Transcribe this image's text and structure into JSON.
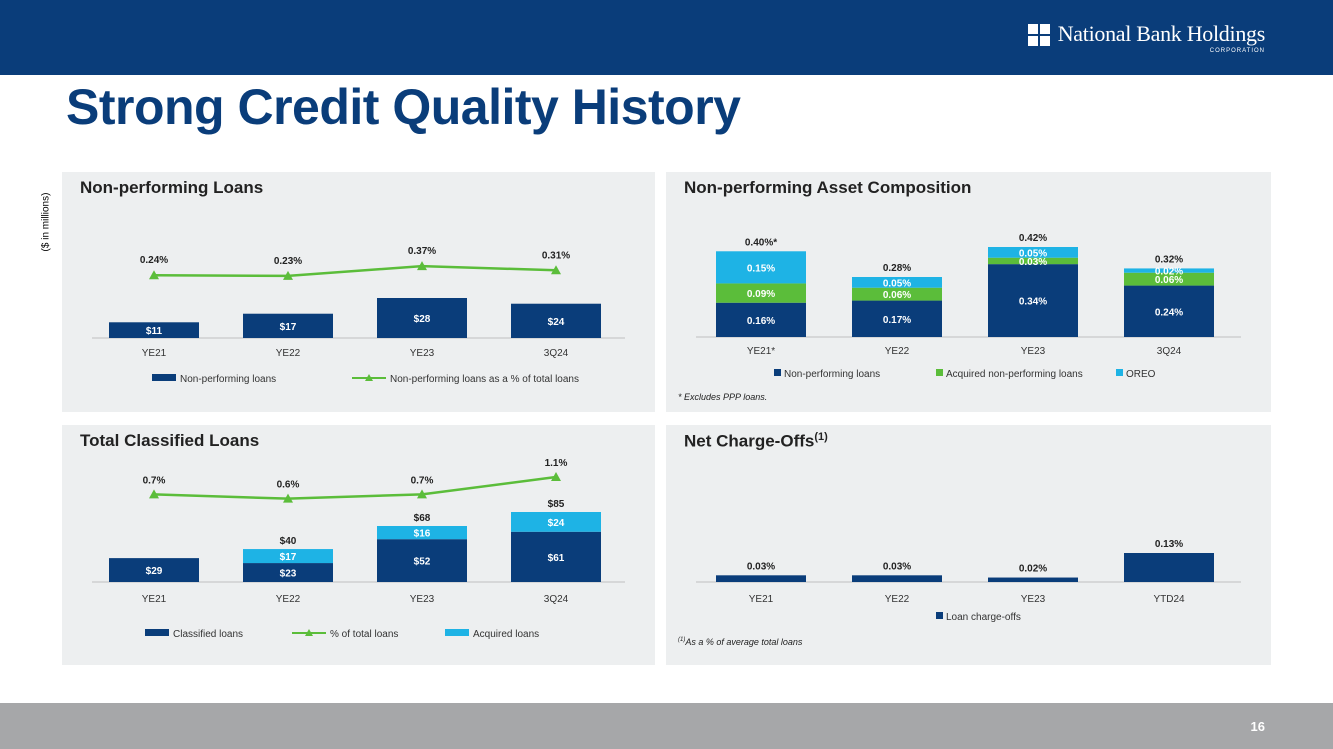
{
  "header": {
    "brand": "National Bank Holdings",
    "brand_sub": "CORPORATION"
  },
  "title": "Strong Credit Quality History",
  "units_label": "($ in millions)",
  "page_number": "16",
  "colors": {
    "navy": "#0a3d7a",
    "green": "#5bbd3a",
    "cyan": "#1eb3e5"
  },
  "panels": {
    "npl": {
      "title": "Non-performing Loans"
    },
    "npa": {
      "title": "Non-performing Asset Composition",
      "footnote": "* Excludes PPP loans."
    },
    "tcl": {
      "title": "Total Classified Loans"
    },
    "nco": {
      "title": "Net Charge-Offs",
      "title_sup": "(1)",
      "footnote_sup": "(1)",
      "footnote": "As a % of average total loans"
    }
  },
  "chart_data": [
    {
      "id": "npl",
      "type": "bar",
      "title": "Non-performing Loans",
      "categories": [
        "YE21",
        "YE22",
        "YE23",
        "3Q24"
      ],
      "series": [
        {
          "name": "Non-performing loans",
          "kind": "bar",
          "color": "#0a3d7a",
          "values": [
            11,
            17,
            28,
            24
          ],
          "labels": [
            "$11",
            "$17",
            "$28",
            "$24"
          ]
        },
        {
          "name": "Non-performing loans as a % of total loans",
          "kind": "line",
          "color": "#5bbd3a",
          "values": [
            0.24,
            0.23,
            0.37,
            0.31
          ],
          "labels": [
            "0.24%",
            "0.23%",
            "0.37%",
            "0.31%"
          ]
        }
      ],
      "legend": "bottom"
    },
    {
      "id": "npa",
      "type": "bar",
      "stacked": true,
      "title": "Non-performing Asset Composition",
      "categories": [
        "YE21*",
        "YE22",
        "YE23",
        "3Q24"
      ],
      "totals": [
        "0.40%*",
        "0.28%",
        "0.42%",
        "0.32%"
      ],
      "series": [
        {
          "name": "Non-performing loans",
          "color": "#0a3d7a",
          "values": [
            0.16,
            0.17,
            0.34,
            0.24
          ],
          "labels": [
            "0.16%",
            "0.17%",
            "0.34%",
            "0.24%"
          ]
        },
        {
          "name": "Acquired non-performing loans",
          "color": "#5bbd3a",
          "values": [
            0.09,
            0.06,
            0.03,
            0.06
          ],
          "labels": [
            "0.09%",
            "0.06%",
            "0.03%",
            "0.06%"
          ]
        },
        {
          "name": "OREO",
          "color": "#1eb3e5",
          "values": [
            0.15,
            0.05,
            0.05,
            0.02
          ],
          "labels": [
            "0.15%",
            "0.05%",
            "0.05%",
            "0.02%"
          ]
        }
      ],
      "legend": "bottom"
    },
    {
      "id": "tcl",
      "type": "bar",
      "stacked": true,
      "title": "Total Classified Loans",
      "categories": [
        "YE21",
        "YE22",
        "YE23",
        "3Q24"
      ],
      "totals": [
        "",
        "$40",
        "$68",
        "$85"
      ],
      "series": [
        {
          "name": "Classified loans",
          "kind": "bar",
          "color": "#0a3d7a",
          "values": [
            29,
            23,
            52,
            61
          ],
          "labels": [
            "$29",
            "$23",
            "$52",
            "$61"
          ]
        },
        {
          "name": "% of total loans",
          "kind": "line",
          "color": "#5bbd3a",
          "values": [
            0.7,
            0.6,
            0.7,
            1.1
          ],
          "labels": [
            "0.7%",
            "0.6%",
            "0.7%",
            "1.1%"
          ]
        },
        {
          "name": "Acquired loans",
          "kind": "bar",
          "color": "#1eb3e5",
          "values": [
            0,
            17,
            16,
            24
          ],
          "labels": [
            "",
            "$17",
            "$16",
            "$24"
          ]
        }
      ],
      "legend": "bottom"
    },
    {
      "id": "nco",
      "type": "bar",
      "title": "Net Charge-Offs",
      "categories": [
        "YE21",
        "YE22",
        "YE23",
        "YTD24"
      ],
      "series": [
        {
          "name": "Loan charge-offs",
          "kind": "bar",
          "color": "#0a3d7a",
          "values": [
            0.03,
            0.03,
            0.02,
            0.13
          ],
          "labels": [
            "0.03%",
            "0.03%",
            "0.02%",
            "0.13%"
          ]
        }
      ],
      "legend": "bottom"
    }
  ]
}
